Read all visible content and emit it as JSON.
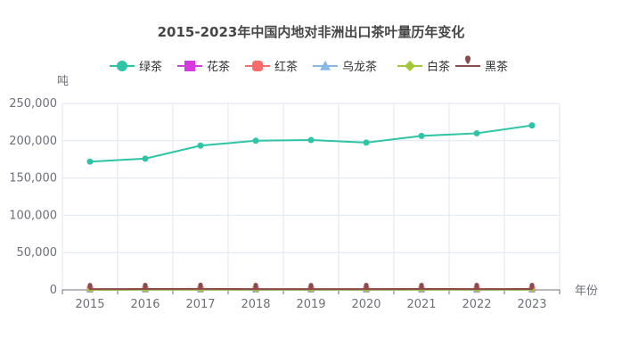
{
  "chart_data": {
    "type": "line",
    "title": "2015-2023年中国内地对非洲出口茶叶量历年变化",
    "xlabel": "年份",
    "ylabel": "吨",
    "categories": [
      "2015",
      "2016",
      "2017",
      "2018",
      "2019",
      "2020",
      "2021",
      "2022",
      "2023"
    ],
    "ylim": [
      0,
      250000
    ],
    "yticks": [
      "0",
      "50,000",
      "100,000",
      "150,000",
      "200,000",
      "250,000"
    ],
    "grid": true,
    "legend_position": "top",
    "series": [
      {
        "name": "绿茶",
        "color": "#2ec4a5",
        "marker": "circle",
        "values": [
          172000,
          176000,
          193500,
          200000,
          201000,
          197500,
          206500,
          210000,
          220500
        ]
      },
      {
        "name": "花茶",
        "color": "#d63be0",
        "marker": "square",
        "values": [
          500,
          600,
          700,
          600,
          500,
          500,
          500,
          400,
          500
        ]
      },
      {
        "name": "红茶",
        "color": "#fb6b6b",
        "marker": "roundrect",
        "values": [
          800,
          900,
          1100,
          900,
          800,
          900,
          1000,
          900,
          900
        ]
      },
      {
        "name": "乌龙茶",
        "color": "#86b9e8",
        "marker": "triangle",
        "values": [
          50,
          50,
          60,
          50,
          50,
          50,
          60,
          50,
          50
        ]
      },
      {
        "name": "白茶",
        "color": "#a5c737",
        "marker": "diamond",
        "values": [
          200,
          250,
          300,
          300,
          250,
          300,
          350,
          300,
          300
        ]
      },
      {
        "name": "黑茶",
        "color": "#8c4b4b",
        "marker": "pin",
        "values": [
          1000,
          1200,
          1300,
          1100,
          1000,
          1100,
          1200,
          1100,
          1200
        ]
      }
    ]
  }
}
